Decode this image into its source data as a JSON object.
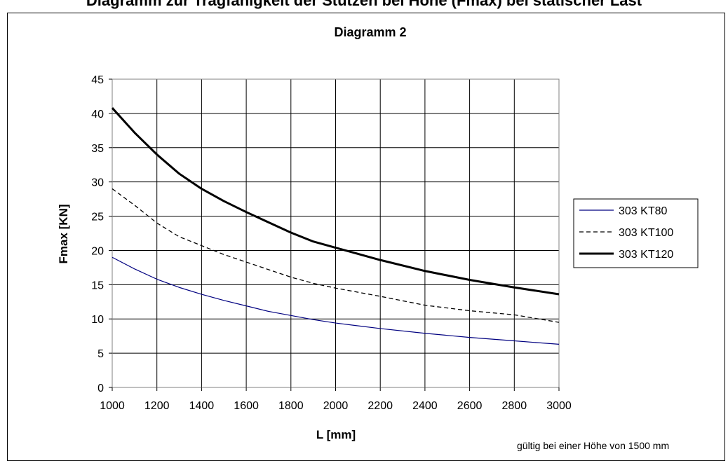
{
  "top_caption": "Diagramm zur Tragfähigkeit der Stützen bei Höhe (Fmax) bei statischer Last",
  "footnote": "gültig bei einer Höhe von 1500 mm",
  "chart_data": {
    "type": "line",
    "title": "Diagramm 2",
    "xlabel": "L [mm]",
    "ylabel": "Fmax [KN]",
    "xlim": [
      1000,
      3000
    ],
    "ylim": [
      0,
      45
    ],
    "xticks": [
      1000,
      1200,
      1400,
      1600,
      1800,
      2000,
      2200,
      2400,
      2600,
      2800,
      3000
    ],
    "yticks": [
      0,
      5,
      10,
      15,
      20,
      25,
      30,
      35,
      40,
      45
    ],
    "grid": true,
    "legend_position": "right",
    "series": [
      {
        "name": "303 KT80",
        "color": "#000080",
        "style": "solid-thin",
        "x": [
          1000,
          1100,
          1200,
          1300,
          1400,
          1500,
          1600,
          1700,
          1800,
          1900,
          2000,
          2200,
          2400,
          2600,
          2800,
          3000
        ],
        "y": [
          19.0,
          17.3,
          15.8,
          14.6,
          13.6,
          12.7,
          11.9,
          11.1,
          10.5,
          9.9,
          9.4,
          8.6,
          7.9,
          7.3,
          6.8,
          6.3
        ]
      },
      {
        "name": "303 KT100",
        "color": "#000000",
        "style": "dashed",
        "x": [
          1000,
          1100,
          1200,
          1300,
          1400,
          1500,
          1600,
          1700,
          1800,
          1900,
          2000,
          2200,
          2400,
          2600,
          2800,
          3000
        ],
        "y": [
          29.0,
          26.6,
          24.0,
          22.0,
          20.7,
          19.4,
          18.3,
          17.2,
          16.1,
          15.2,
          14.5,
          13.3,
          12.0,
          11.2,
          10.6,
          9.5
        ]
      },
      {
        "name": "303 KT120",
        "color": "#000000",
        "style": "solid-thick",
        "x": [
          1000,
          1100,
          1200,
          1300,
          1400,
          1500,
          1600,
          1700,
          1800,
          1900,
          2000,
          2200,
          2400,
          2600,
          2800,
          3000
        ],
        "y": [
          40.8,
          37.2,
          34.0,
          31.2,
          29.0,
          27.2,
          25.6,
          24.1,
          22.6,
          21.3,
          20.4,
          18.6,
          17.0,
          15.7,
          14.6,
          13.6
        ]
      }
    ]
  }
}
